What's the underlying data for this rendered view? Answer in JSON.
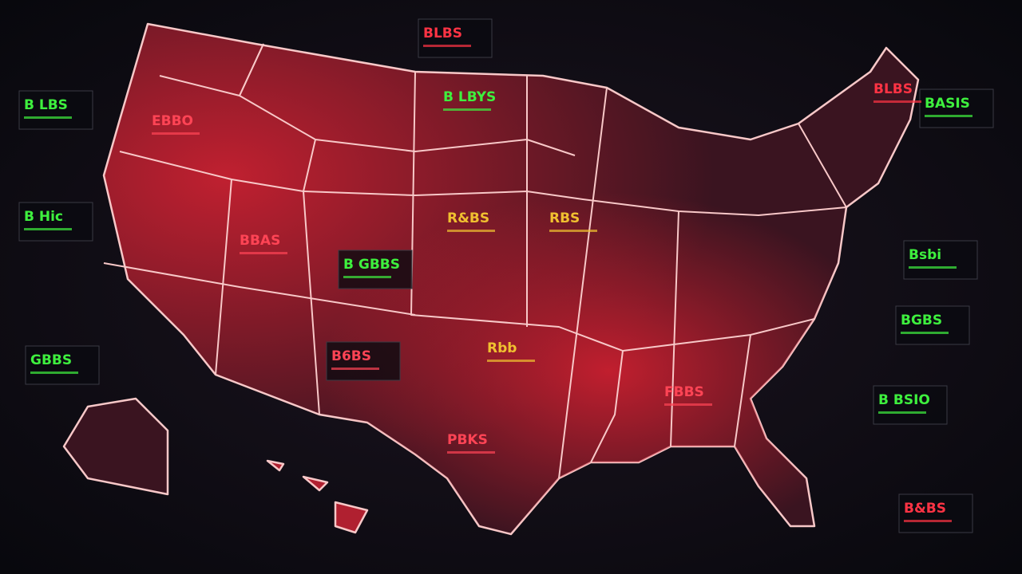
{
  "map": {
    "labels": [
      {
        "text": "BLBS",
        "color": "#ff3344"
      },
      {
        "text": "B LBYS",
        "color": "#3ef03e"
      },
      {
        "text": "EBBO",
        "color": "#ff4455"
      },
      {
        "text": "B Hic",
        "color": "#3ef03e"
      },
      {
        "text": "B LBS",
        "color": "#3ef03e"
      },
      {
        "text": "GBBS",
        "color": "#3ef03e"
      },
      {
        "text": "B GBBS",
        "color": "#3ef03e"
      },
      {
        "text": "B6BS",
        "color": "#ff4455"
      },
      {
        "text": "R&BS",
        "color": "#f0c030"
      },
      {
        "text": "BASIS",
        "color": "#3ef03e"
      },
      {
        "text": "BGBS",
        "color": "#3ef03e"
      },
      {
        "text": "Bsbi",
        "color": "#3ef03e"
      },
      {
        "text": "B BSIO",
        "color": "#3ef03e"
      },
      {
        "text": "BLBS",
        "color": "#ff3344"
      },
      {
        "text": "B&BS",
        "color": "#ff3344"
      },
      {
        "text": "PBKS",
        "color": "#ff4455"
      },
      {
        "text": "FBBS",
        "color": "#ff4455"
      },
      {
        "text": "BBAS",
        "color": "#ff4455"
      },
      {
        "text": "Rbb",
        "color": "#f0c030"
      },
      {
        "text": "RBS",
        "color": "#f0c030"
      }
    ]
  }
}
